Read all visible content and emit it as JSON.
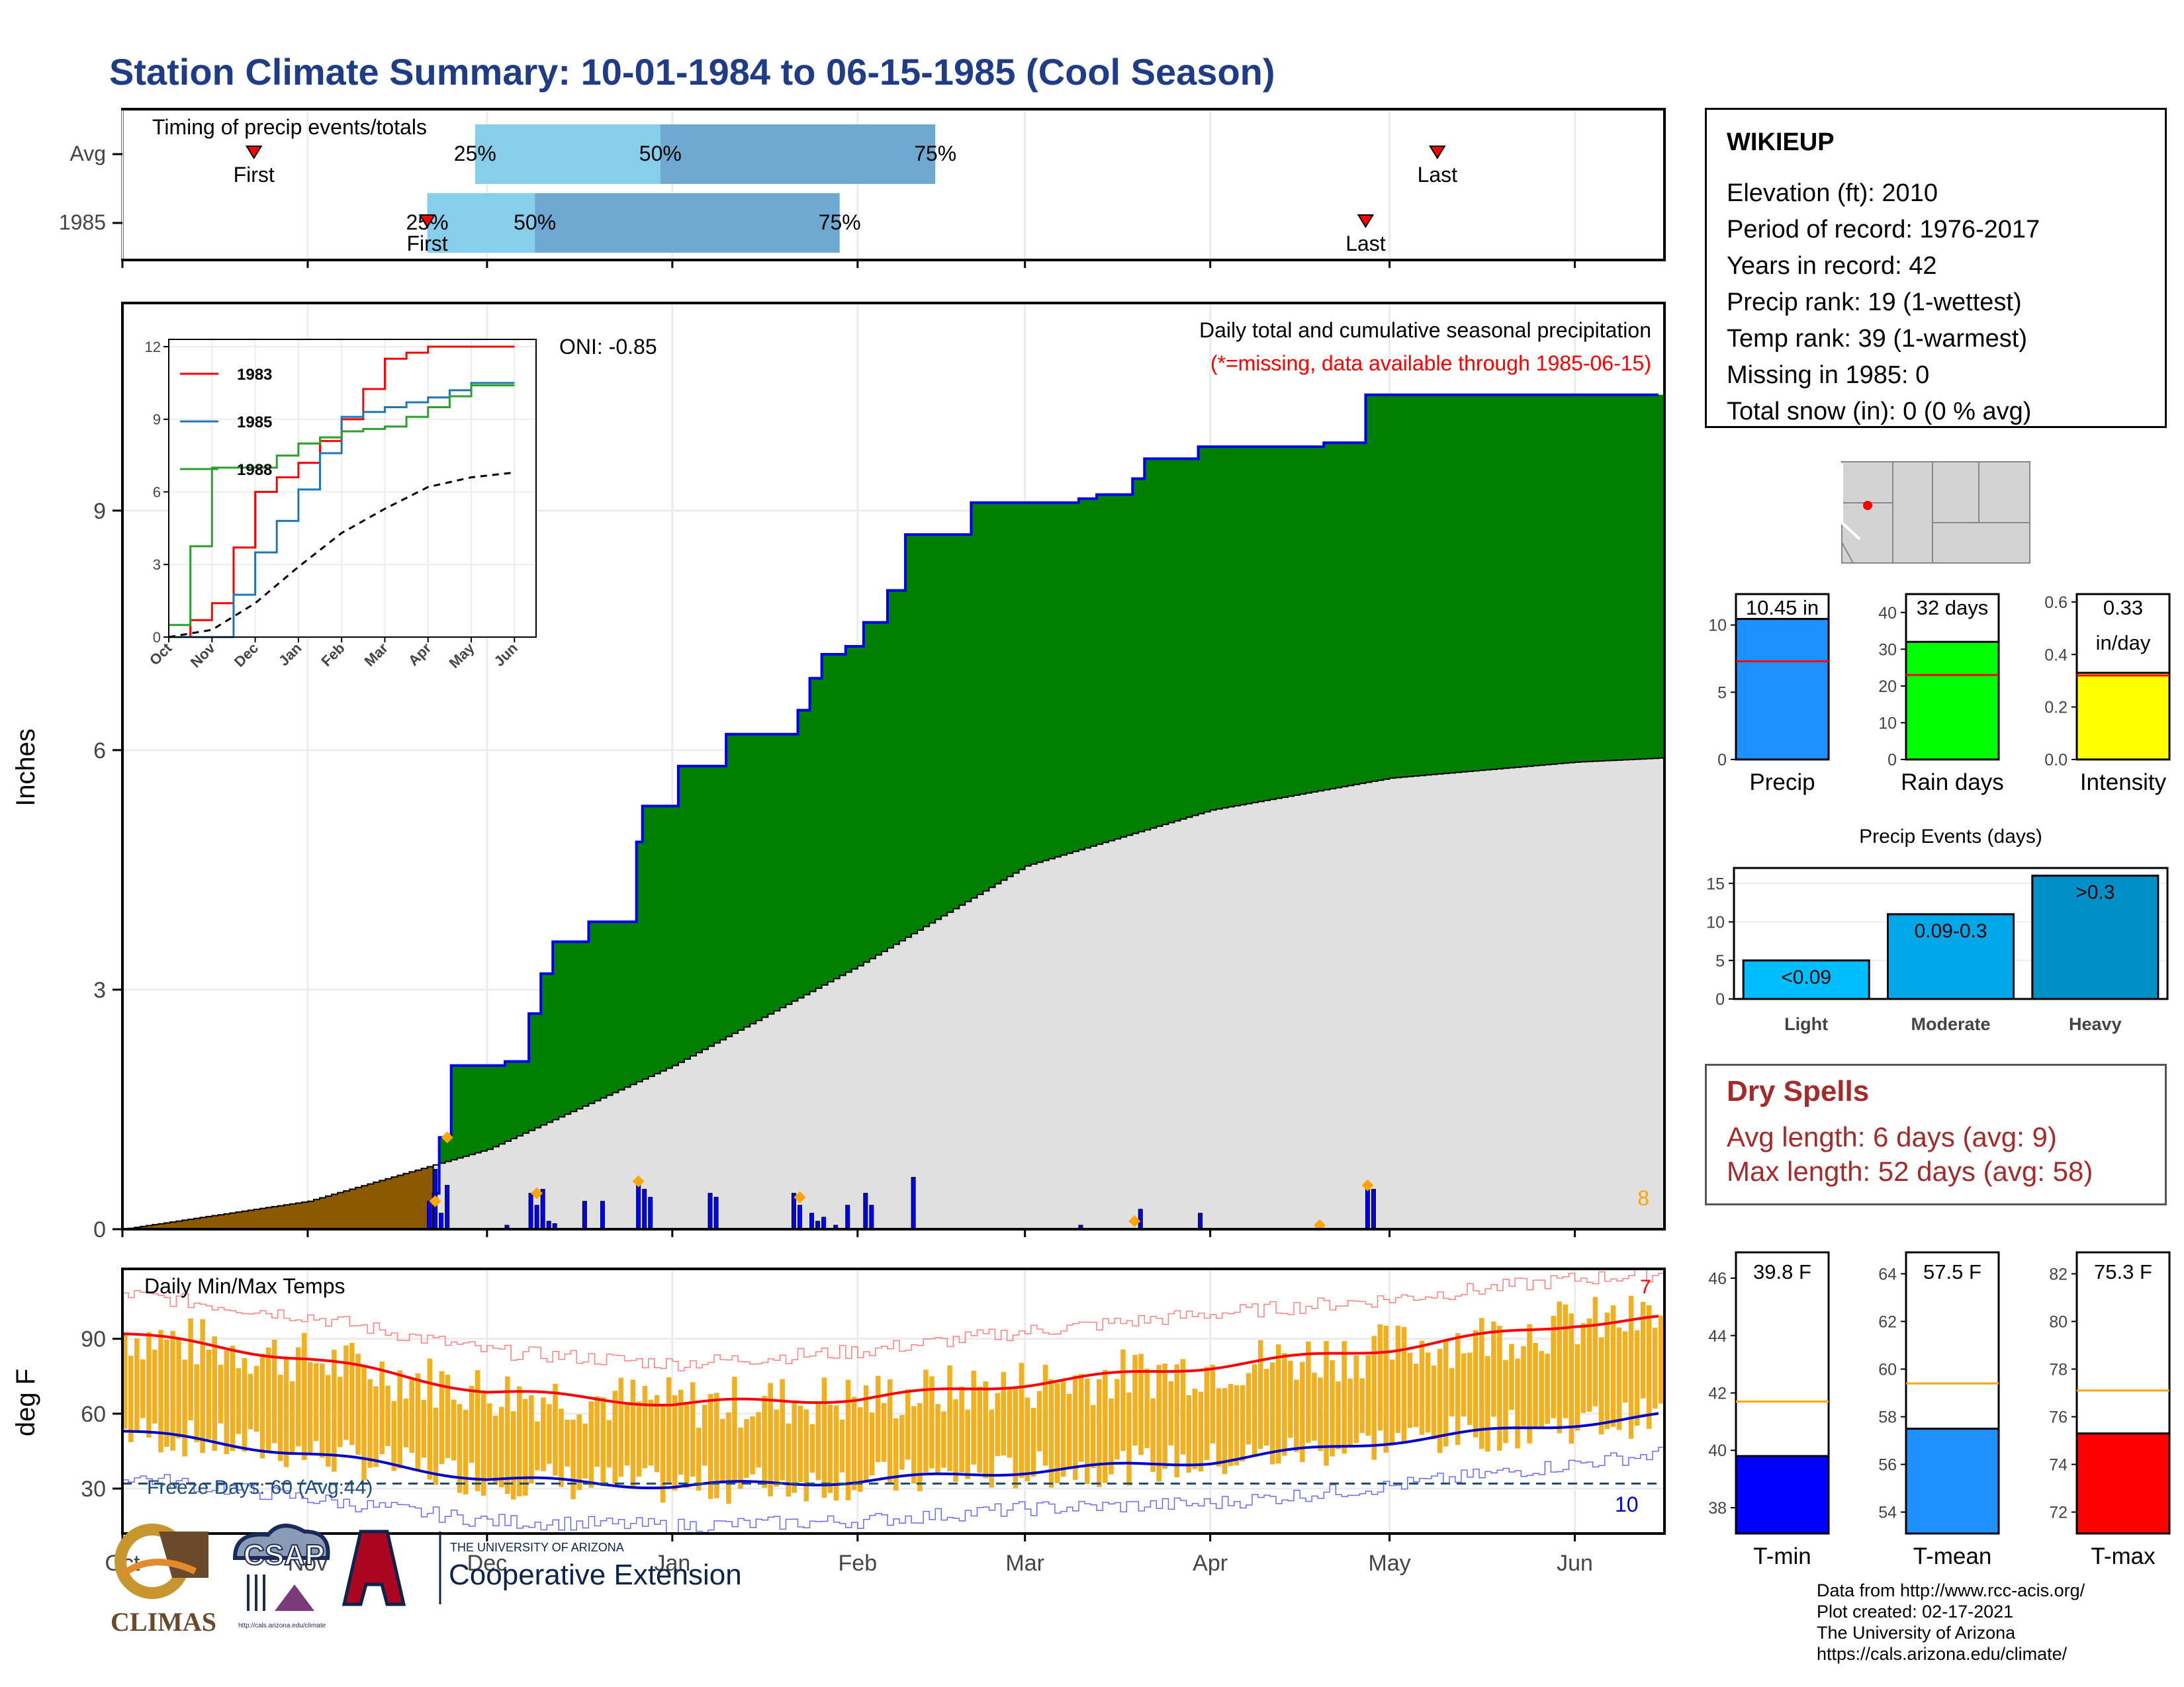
{
  "title": "Station Climate Summary: 10-01-1984 to 06-15-1985 (Cool Season)",
  "colors": {
    "title": "#1f3c88",
    "precip_area": "#008000",
    "cum_line": "#0000ee",
    "prev_area": "#8b5a00",
    "normal_area": "#e0e0e0",
    "bar25": "#87ceeb",
    "bar50": "#6fa8d0",
    "temp_bar": "#f0b020",
    "tmax_line": "#ff0000",
    "tmin_line": "#0000cc",
    "freeze_line": "#1f4e79",
    "dry_red": "#a52a2a"
  },
  "timing": {
    "title": "Timing of precip events/totals",
    "rows": [
      {
        "label": "Avg",
        "first_label": "First",
        "last_label": "Last",
        "first_date": "1984-10-23",
        "last_date": "1985-05-09",
        "p25_label": "25%",
        "p50_label": "50%",
        "p75_label": "75%",
        "p25_date": "1984-11-29",
        "p50_date": "1984-12-30",
        "p75_date": "1985-02-14"
      },
      {
        "label": "1985",
        "first_label": "First",
        "last_label": "Last",
        "first_date": "1984-11-21",
        "last_date": "1985-04-27",
        "p25_label": "25%",
        "p50_label": "50%",
        "p75_label": "75%",
        "p25_date": "1984-11-21",
        "p50_date": "1984-12-09",
        "p75_date": "1985-01-29"
      }
    ]
  },
  "precip_panel": {
    "ylabel": "Inches",
    "yticks": [
      0,
      3,
      6,
      9
    ],
    "oni": "ONI: -0.85",
    "caption": "Daily total and cumulative seasonal precipitation",
    "missing_note": "(*=missing, data available through 1985-06-15)",
    "count_label": "8"
  },
  "inset": {
    "yticks": [
      "0",
      "3",
      "6",
      "9",
      "12"
    ],
    "months": [
      "Oct",
      "Nov",
      "Dec",
      "Jan",
      "Feb",
      "Mar",
      "Apr",
      "May",
      "Jun"
    ],
    "legend": [
      {
        "name": "1983",
        "color": "#ff0000"
      },
      {
        "name": "1985",
        "color": "#1f77b4"
      },
      {
        "name": "1988",
        "color": "#2ca02c"
      }
    ]
  },
  "temp_panel": {
    "ylabel": "deg F",
    "title": "Daily Min/Max Temps",
    "yticks": [
      30,
      60,
      90
    ],
    "freeze_text": "Freeze Days: 60 (Avg:44)",
    "freeze_count": "10",
    "hot_count": "7"
  },
  "months": [
    "Oct",
    "Nov",
    "Dec",
    "Jan",
    "Feb",
    "Mar",
    "Apr",
    "May",
    "Jun"
  ],
  "info": {
    "station": "WIKIEUP",
    "rows": [
      "Elevation (ft): 2010",
      "Period of record: 1976-2017",
      "Years in record: 42",
      "Precip rank: 19 (1-wettest)",
      "Temp rank: 39 (1-warmest)",
      "Missing in 1985: 0",
      "Total snow (in): 0 (0 % avg)"
    ]
  },
  "mini_bars": [
    {
      "name": "Precip",
      "value": 10.45,
      "avg": 7.3,
      "label1": "10.45 in",
      "label2": "",
      "yticks": [
        "0",
        "5",
        "10"
      ],
      "color": "#1e90ff"
    },
    {
      "name": "Rain days",
      "value": 32,
      "avg": 23,
      "label1": "32 days",
      "label2": "",
      "yticks": [
        "0",
        "10",
        "20",
        "30",
        "40"
      ],
      "color": "#00ff00"
    },
    {
      "name": "Intensity",
      "value": 0.33,
      "avg": 0.32,
      "label1": "0.33",
      "label2": "in/day",
      "yticks": [
        "0.0",
        "0.2",
        "0.4",
        "0.6"
      ],
      "color": "#ffff00"
    }
  ],
  "events": {
    "title": "Precip Events (days)",
    "categories": [
      "Light",
      "Moderate",
      "Heavy"
    ],
    "values": [
      5,
      11,
      16
    ],
    "labels": [
      "<0.09",
      "0.09-0.3",
      ">0.3"
    ],
    "yticks": [
      "0",
      "5",
      "10",
      "15"
    ]
  },
  "dry_spells": {
    "title": "Dry Spells",
    "avg": "Avg length: 6 days (avg: 9)",
    "max": "Max length: 52 days (avg: 58)"
  },
  "temp_bars": [
    {
      "name": "T-min",
      "value": 39.8,
      "avg": 41.7,
      "label": "39.8 F",
      "yticks": [
        "38",
        "40",
        "42",
        "44",
        "46"
      ],
      "color": "#0000ff"
    },
    {
      "name": "T-mean",
      "value": 57.5,
      "avg": 59.4,
      "label": "57.5 F",
      "yticks": [
        "54",
        "56",
        "58",
        "60",
        "62",
        "64"
      ],
      "color": "#1e90ff"
    },
    {
      "name": "T-max",
      "value": 75.3,
      "avg": 77.1,
      "label": "75.3 F",
      "yticks": [
        "72",
        "74",
        "76",
        "78",
        "80",
        "82"
      ],
      "color": "#ff0000"
    }
  ],
  "footer": [
    "Data from http://www.rcc-acis.org/",
    "Plot created: 02-17-2021",
    "The University of Arizona",
    "https://cals.arizona.edu/climate/"
  ],
  "logos": {
    "climas": "CLIMAS",
    "csap": "CSAP",
    "csap_url": "http://cals.arizona.edu/climate",
    "ua_small": "THE UNIVERSITY OF ARIZONA",
    "ua_big": "Cooperative Extension"
  },
  "chart_data": [
    {
      "type": "area",
      "title": "Daily total and cumulative seasonal precipitation",
      "ylabel": "Inches",
      "ylim": [
        0,
        11.6
      ],
      "season_start": "1984-10-01",
      "cumulative_steps": [
        [
          "1984-10-01",
          0
        ],
        [
          "1984-11-22",
          0.45
        ],
        [
          "1984-11-23",
          1.15
        ],
        [
          "1984-11-25",
          2.05
        ],
        [
          "1984-12-04",
          2.1
        ],
        [
          "1984-12-08",
          2.7
        ],
        [
          "1984-12-10",
          3.2
        ],
        [
          "1984-12-12",
          3.6
        ],
        [
          "1984-12-18",
          3.85
        ],
        [
          "1984-12-26",
          4.85
        ],
        [
          "1984-12-27",
          5.3
        ],
        [
          "1985-01-02",
          5.8
        ],
        [
          "1985-01-10",
          6.2
        ],
        [
          "1985-01-22",
          6.5
        ],
        [
          "1985-01-24",
          6.9
        ],
        [
          "1985-01-26",
          7.2
        ],
        [
          "1985-01-30",
          7.3
        ],
        [
          "1985-02-02",
          7.6
        ],
        [
          "1985-02-06",
          8.0
        ],
        [
          "1985-02-09",
          8.7
        ],
        [
          "1985-02-20",
          9.1
        ],
        [
          "1985-03-10",
          9.15
        ],
        [
          "1985-03-13",
          9.2
        ],
        [
          "1985-03-19",
          9.4
        ],
        [
          "1985-03-21",
          9.65
        ],
        [
          "1985-03-30",
          9.8
        ],
        [
          "1985-04-20",
          9.85
        ],
        [
          "1985-04-27",
          10.45
        ],
        [
          "1985-06-15",
          10.45
        ]
      ],
      "normal_cumulative": [
        [
          "1984-10-01",
          0
        ],
        [
          "1984-11-01",
          0.35
        ],
        [
          "1984-12-01",
          1.0
        ],
        [
          "1985-01-01",
          2.05
        ],
        [
          "1985-02-01",
          3.3
        ],
        [
          "1985-03-01",
          4.55
        ],
        [
          "1985-04-01",
          5.25
        ],
        [
          "1985-05-01",
          5.65
        ],
        [
          "1985-06-01",
          5.85
        ],
        [
          "1985-06-15",
          5.9
        ]
      ],
      "daily_bars": [
        [
          "1984-11-21",
          0.35
        ],
        [
          "1984-11-22",
          0.75
        ],
        [
          "1984-11-23",
          0.2
        ],
        [
          "1984-11-24",
          0.55
        ],
        [
          "1984-12-04",
          0.05
        ],
        [
          "1984-12-08",
          0.45
        ],
        [
          "1984-12-09",
          0.3
        ],
        [
          "1984-12-10",
          0.5
        ],
        [
          "1984-12-11",
          0.1
        ],
        [
          "1984-12-12",
          0.07
        ],
        [
          "1984-12-17",
          0.35
        ],
        [
          "1984-12-20",
          0.35
        ],
        [
          "1984-12-26",
          0.55
        ],
        [
          "1984-12-27",
          0.5
        ],
        [
          "1984-12-28",
          0.4
        ],
        [
          "1985-01-07",
          0.45
        ],
        [
          "1985-01-08",
          0.4
        ],
        [
          "1985-01-21",
          0.45
        ],
        [
          "1985-01-22",
          0.3
        ],
        [
          "1985-01-24",
          0.2
        ],
        [
          "1985-01-25",
          0.1
        ],
        [
          "1985-01-26",
          0.15
        ],
        [
          "1985-01-28",
          0.05
        ],
        [
          "1985-01-30",
          0.3
        ],
        [
          "1985-02-02",
          0.45
        ],
        [
          "1985-02-03",
          0.3
        ],
        [
          "1985-02-10",
          0.65
        ],
        [
          "1985-03-10",
          0.05
        ],
        [
          "1985-03-20",
          0.25
        ],
        [
          "1985-03-30",
          0.2
        ],
        [
          "1985-04-27",
          0.55
        ],
        [
          "1985-04-28",
          0.5
        ]
      ],
      "missing_markers": [
        [
          "1984-11-22",
          0.35
        ],
        [
          "1984-11-24",
          1.15
        ],
        [
          "1984-12-09",
          0.45
        ],
        [
          "1984-12-26",
          0.6
        ],
        [
          "1985-01-22",
          0.4
        ],
        [
          "1985-03-19",
          0.1
        ],
        [
          "1985-04-19",
          0.05
        ],
        [
          "1985-04-27",
          0.55
        ]
      ]
    },
    {
      "type": "line",
      "title": "",
      "x": [
        "Oct",
        "Nov",
        "Dec",
        "Jan",
        "Feb",
        "Mar",
        "Apr",
        "May",
        "Jun"
      ],
      "ylim": [
        0,
        12
      ],
      "series": [
        {
          "name": "1983",
          "values": [
            0,
            1.4,
            6,
            7.2,
            9,
            11.5,
            12,
            12,
            12
          ]
        },
        {
          "name": "1985",
          "values": [
            0,
            0,
            3.5,
            6.1,
            9.1,
            9.5,
            9.9,
            10.5,
            10.5
          ]
        },
        {
          "name": "1988",
          "values": [
            0.5,
            7,
            7,
            8,
            8.5,
            8.7,
            9.5,
            10.4,
            10.4
          ]
        },
        {
          "name": "",
          "values": [
            0,
            0.3,
            1.4,
            2.9,
            4.3,
            5.3,
            6.2,
            6.6,
            6.8
          ]
        }
      ]
    },
    {
      "type": "bar",
      "title": "Daily Min/Max Temps",
      "ylabel": "deg F",
      "ylim": [
        12,
        118
      ],
      "normal_max": [
        [
          "1984-10-01",
          92
        ],
        [
          "1984-11-01",
          82
        ],
        [
          "1984-12-01",
          69
        ],
        [
          "1985-01-01",
          64
        ],
        [
          "1985-02-01",
          66
        ],
        [
          "1985-03-01",
          72
        ],
        [
          "1985-04-01",
          79
        ],
        [
          "1985-05-01",
          86
        ],
        [
          "1985-06-01",
          96
        ],
        [
          "1985-06-15",
          98
        ]
      ],
      "normal_min": [
        [
          "1984-10-01",
          53
        ],
        [
          "1984-11-01",
          44
        ],
        [
          "1984-12-01",
          34
        ],
        [
          "1985-01-01",
          31
        ],
        [
          "1985-02-01",
          33
        ],
        [
          "1985-03-01",
          37
        ],
        [
          "1985-04-01",
          41
        ],
        [
          "1985-05-01",
          49
        ],
        [
          "1985-06-01",
          56
        ],
        [
          "1985-06-15",
          59
        ]
      ],
      "record_max": [
        [
          "1984-10-01",
          108
        ],
        [
          "1984-11-01",
          99
        ],
        [
          "1984-12-01",
          85
        ],
        [
          "1985-01-01",
          80
        ],
        [
          "1985-02-01",
          85
        ],
        [
          "1985-03-01",
          93
        ],
        [
          "1985-04-01",
          100
        ],
        [
          "1985-05-01",
          106
        ],
        [
          "1985-06-01",
          114
        ],
        [
          "1985-06-15",
          116
        ]
      ],
      "record_min": [
        [
          "1984-10-01",
          35
        ],
        [
          "1984-11-01",
          26
        ],
        [
          "1984-12-01",
          17
        ],
        [
          "1985-01-01",
          15
        ],
        [
          "1985-02-01",
          17
        ],
        [
          "1985-03-01",
          22
        ],
        [
          "1985-04-01",
          24
        ],
        [
          "1985-05-01",
          31
        ],
        [
          "1985-06-01",
          40
        ],
        [
          "1985-06-15",
          44
        ]
      ],
      "freeze_threshold": 32
    }
  ]
}
